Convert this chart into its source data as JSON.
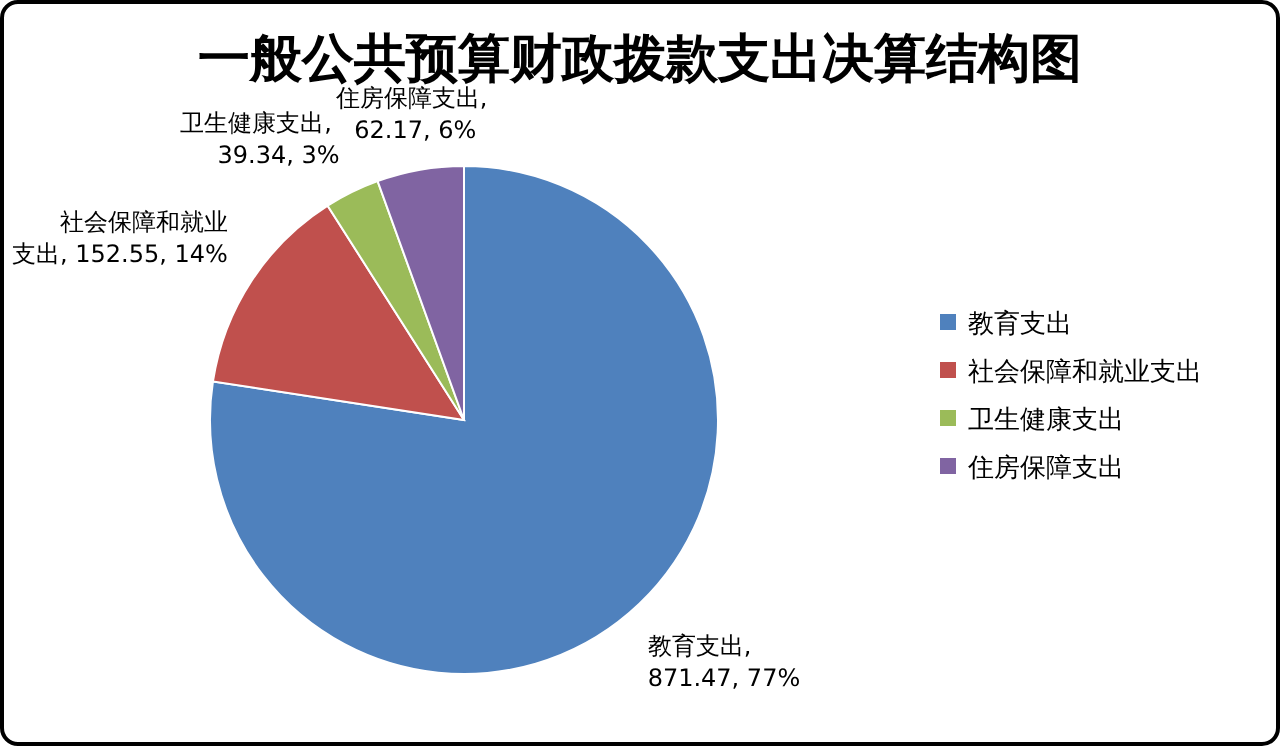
{
  "chart_data": {
    "type": "pie",
    "title": "一般公共预算财政拨款支出决算结构图",
    "categories": [
      "教育支出",
      "社会保障和就业支出",
      "卫生健康支出",
      "住房保障支出"
    ],
    "values": [
      871.47,
      152.55,
      39.34,
      62.17
    ],
    "colors": [
      "#4f81bd",
      "#c0504d",
      "#9bbb59",
      "#8064a2"
    ],
    "value_labels": [
      "教育支出, 871.47, 77%",
      "社会保障和就业支出, 152.55, 14%",
      "卫生健康支出, 39.34, 3%",
      "住房保障支出, 62.17, 6%"
    ],
    "legend": "right"
  }
}
